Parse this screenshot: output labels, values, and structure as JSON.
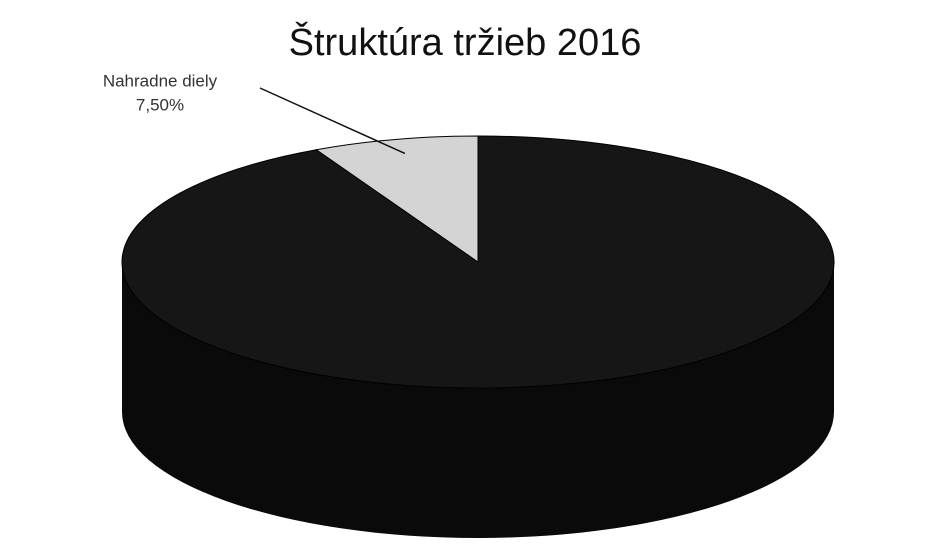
{
  "chart_data": {
    "type": "pie3d",
    "title": "Štruktúra tržieb 2016",
    "categories": [
      null,
      "Nahradne diely"
    ],
    "values": [
      92.5,
      7.5
    ],
    "value_labels": [
      null,
      "7,50%"
    ],
    "colors": [
      "#161616",
      "#d4d4d4"
    ]
  }
}
